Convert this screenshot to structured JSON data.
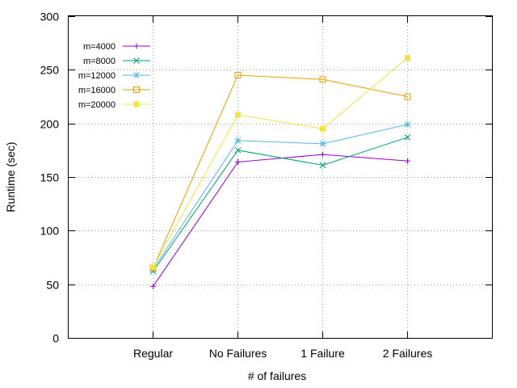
{
  "chart_data": {
    "type": "line",
    "categories": [
      "Regular",
      "No Failures",
      "1 Failure",
      "2 Failures"
    ],
    "xlabel": "# of failures",
    "ylabel": "Runtime (sec)",
    "ylim": [
      0,
      300
    ],
    "yticks": [
      0,
      50,
      100,
      150,
      200,
      250,
      300
    ],
    "grid": true,
    "legend_position": "top-left",
    "series": [
      {
        "name": "m=4000",
        "values": [
          48,
          164,
          171,
          165
        ],
        "color": "#9400d3",
        "marker": "plus"
      },
      {
        "name": "m=8000",
        "values": [
          62,
          175,
          161,
          187
        ],
        "color": "#009e73",
        "marker": "cross"
      },
      {
        "name": "m=12000",
        "values": [
          64,
          184,
          181,
          199
        ],
        "color": "#56b4e9",
        "marker": "star"
      },
      {
        "name": "m=16000",
        "values": [
          65,
          245,
          241,
          225
        ],
        "color": "#e69f00",
        "marker": "square-open"
      },
      {
        "name": "m=20000",
        "values": [
          66,
          208,
          195,
          261
        ],
        "color": "#f0e442",
        "marker": "square-filled"
      }
    ]
  }
}
